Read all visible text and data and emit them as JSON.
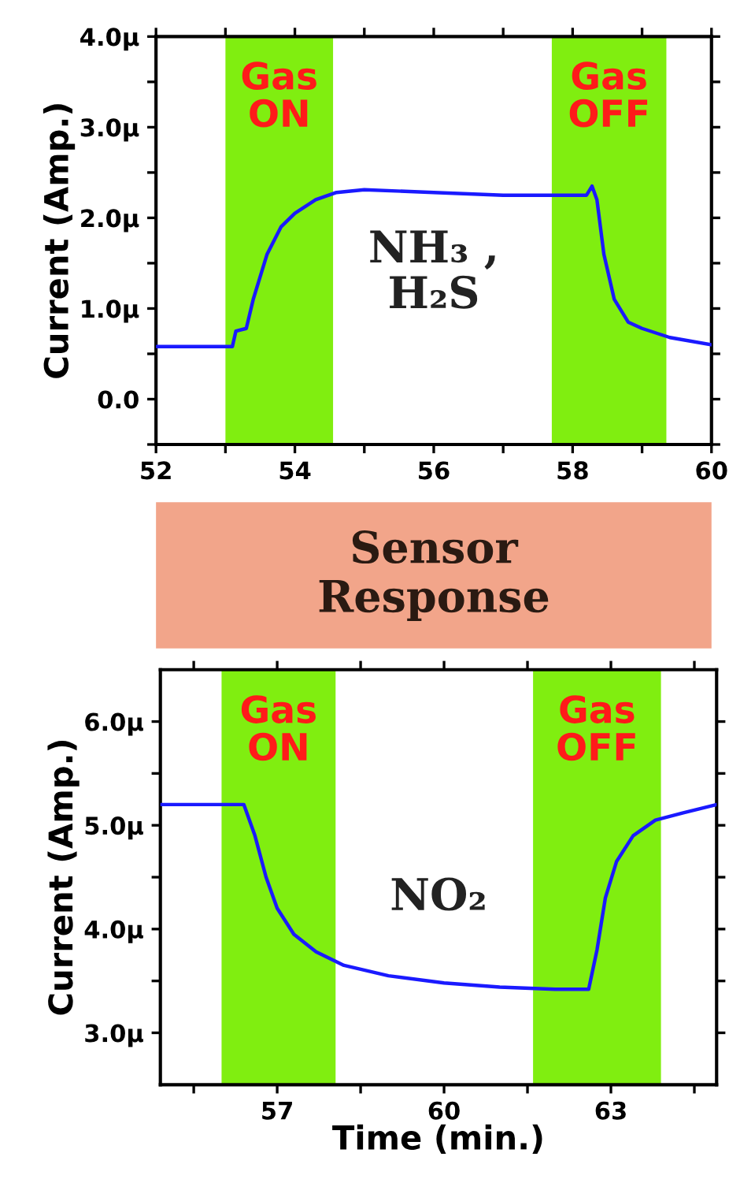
{
  "chart_data": [
    {
      "type": "line",
      "ylabel": "Current (Amp.)",
      "x": [
        52,
        53.1,
        53.15,
        53.3,
        53.4,
        53.6,
        53.8,
        54.0,
        54.3,
        54.6,
        55,
        56,
        57,
        58.2,
        58.28,
        58.35,
        58.45,
        58.6,
        58.8,
        59.0,
        59.4,
        60
      ],
      "series": [
        {
          "color": "#1a1aff",
          "values": [
            0.58,
            0.58,
            0.75,
            0.78,
            1.1,
            1.6,
            1.9,
            2.05,
            2.2,
            2.28,
            2.31,
            2.28,
            2.25,
            2.25,
            2.35,
            2.2,
            1.6,
            1.1,
            0.85,
            0.78,
            0.68,
            0.6
          ]
        }
      ],
      "xlim": [
        52,
        60
      ],
      "ylim": [
        -0.5,
        4.0
      ],
      "xticks": [
        52,
        {
          "value": 53,
          "label": null
        },
        54,
        {
          "value": 55,
          "label": null
        },
        56,
        {
          "value": 57,
          "label": null
        },
        58,
        {
          "value": 59,
          "label": null
        },
        60
      ],
      "yticks": [
        {
          "value": -0.5,
          "label": null
        },
        {
          "value": 0.0,
          "label": "0.0"
        },
        {
          "value": 0.5,
          "label": null
        },
        {
          "value": 1.0,
          "label": "1.0μ"
        },
        {
          "value": 1.5,
          "label": null
        },
        {
          "value": 2.0,
          "label": "2.0μ"
        },
        {
          "value": 2.5,
          "label": null
        },
        {
          "value": 3.0,
          "label": "3.0μ"
        },
        {
          "value": 3.5,
          "label": null
        },
        {
          "value": 4.0,
          "label": "4.0μ"
        }
      ],
      "bands": [
        {
          "axis": "x",
          "from": 53.0,
          "to": 54.55,
          "label": "Gas\nON",
          "color": "#80ee10"
        },
        {
          "axis": "x",
          "from": 57.7,
          "to": 59.35,
          "label": "Gas\nOFF",
          "color": "#80ee10"
        }
      ],
      "annotations": [
        "NH₃ ,\nH₂S",
        "Sensor\nResponse"
      ],
      "grid": false,
      "marker": "none",
      "line_style": "solid"
    },
    {
      "type": "line",
      "xlabel": "Time (min.)",
      "ylabel": "Current (Amp.)",
      "x": [
        54.9,
        56.4,
        56.6,
        56.8,
        57.0,
        57.3,
        57.7,
        58.2,
        59,
        60,
        61,
        62,
        62.6,
        62.75,
        62.9,
        63.1,
        63.4,
        63.8,
        64.3,
        64.9
      ],
      "series": [
        {
          "color": "#1a1aff",
          "values": [
            5.2,
            5.2,
            4.9,
            4.5,
            4.2,
            3.95,
            3.78,
            3.65,
            3.55,
            3.48,
            3.44,
            3.42,
            3.42,
            3.8,
            4.3,
            4.65,
            4.9,
            5.05,
            5.12,
            5.2
          ]
        }
      ],
      "xlim": [
        54.9,
        64.9
      ],
      "ylim": [
        2.5,
        6.5
      ],
      "xticks": [
        {
          "value": 55.5,
          "label": null
        },
        57,
        {
          "value": 58.5,
          "label": null
        },
        60,
        {
          "value": 61.5,
          "label": null
        },
        63,
        {
          "value": 64.5,
          "label": null
        }
      ],
      "yticks": [
        {
          "value": 3.0,
          "label": "3.0μ"
        },
        {
          "value": 3.5,
          "label": null
        },
        {
          "value": 4.0,
          "label": "4.0μ"
        },
        {
          "value": 4.5,
          "label": null
        },
        {
          "value": 5.0,
          "label": "5.0μ"
        },
        {
          "value": 5.5,
          "label": null
        },
        {
          "value": 6.0,
          "label": "6.0μ"
        }
      ],
      "bands": [
        {
          "axis": "x",
          "from": 56.0,
          "to": 58.05,
          "label": "Gas\nON",
          "color": "#80ee10"
        },
        {
          "axis": "x",
          "from": 61.6,
          "to": 63.9,
          "label": "Gas\nOFF",
          "color": "#80ee10"
        }
      ],
      "annotations": [
        "NO₂"
      ],
      "grid": false,
      "marker": "none",
      "line_style": "solid"
    }
  ]
}
